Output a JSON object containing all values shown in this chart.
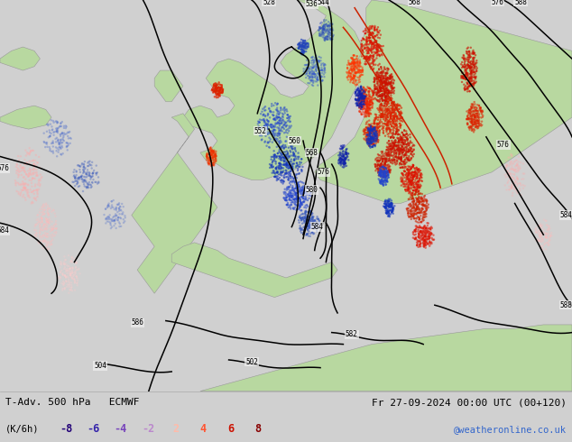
{
  "title_left": "T-Adv. 500 hPa   ECMWF",
  "title_right": "Fr 27-09-2024 00:00 UTC (00+120)",
  "unit_label": "(K/6h)",
  "legend_values": [
    -8,
    -6,
    -4,
    -2,
    2,
    4,
    6,
    8
  ],
  "neg_colors": [
    "#220077",
    "#3322aa",
    "#7744bb",
    "#bb88cc"
  ],
  "pos_colors": [
    "#ffbbaa",
    "#ff5533",
    "#cc1100",
    "#880000"
  ],
  "watermark": "@weatheronline.co.uk",
  "watermark_color": "#3366cc",
  "bg_color": "#f0f0f0",
  "land_color": "#c8c8c8",
  "land_edge_color": "#999999",
  "green_land_color": "#b8d8a0",
  "bottom_bar_color": "#d0d0d0",
  "fig_width": 6.34,
  "fig_height": 4.9,
  "dpi": 100
}
